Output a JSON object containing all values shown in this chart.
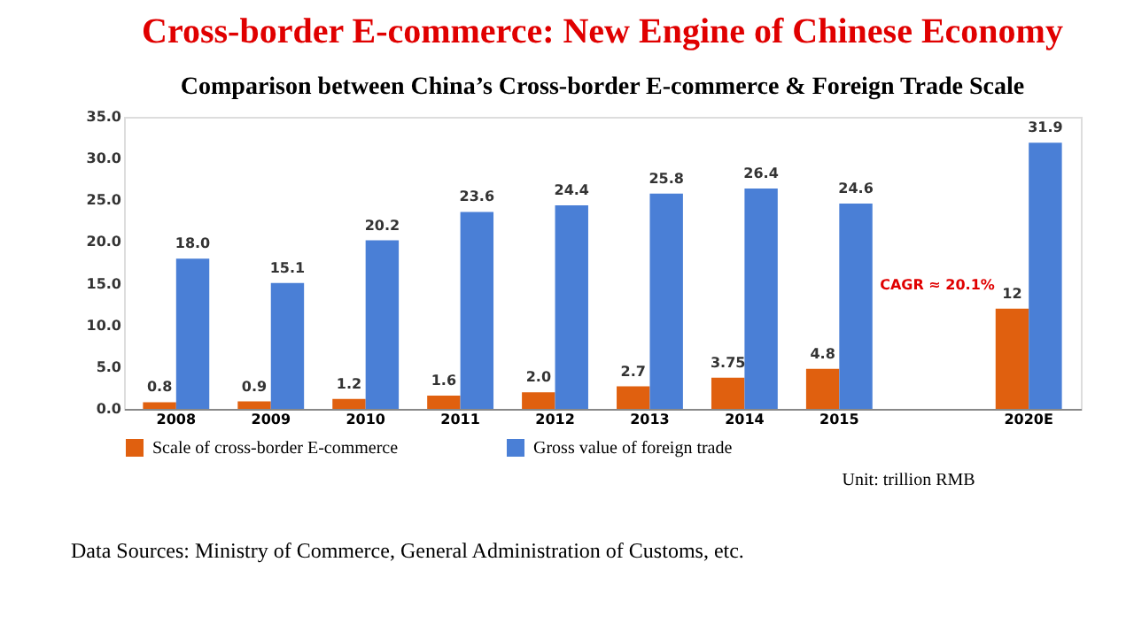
{
  "chart_data": {
    "type": "bar",
    "title": "Cross-border E-commerce: New Engine of Chinese Economy",
    "subtitle": "Comparison between China’s  Cross-border E-commerce & Foreign Trade Scale",
    "categories": [
      "2008",
      "2009",
      "2010",
      "2011",
      "2012",
      "2013",
      "2014",
      "2015",
      null,
      "2020E"
    ],
    "series": [
      {
        "name": "Scale of cross-border E-commerce",
        "color": "#e0600f",
        "values": [
          0.8,
          0.9,
          1.2,
          1.6,
          2.0,
          2.7,
          3.75,
          4.8,
          null,
          12
        ],
        "value_labels": [
          "0.8",
          "0.9",
          "1.2",
          "1.6",
          "2.0",
          "2.7",
          "3.75",
          "4.8",
          null,
          "12"
        ]
      },
      {
        "name": "Gross value of foreign trade",
        "color": "#4a7fd6",
        "values": [
          18.0,
          15.1,
          20.2,
          23.6,
          24.4,
          25.8,
          26.4,
          24.6,
          null,
          31.9
        ],
        "value_labels": [
          "18.0",
          "15.1",
          "20.2",
          "23.6",
          "24.4",
          "25.8",
          "26.4",
          "24.6",
          null,
          "31.9"
        ]
      }
    ],
    "ylim": [
      0,
      35
    ],
    "yticks": [
      {
        "value": 0,
        "label": "0.0"
      },
      {
        "value": 5,
        "label": "5.0"
      },
      {
        "value": 10,
        "label": "10.0"
      },
      {
        "value": 15,
        "label": "15.0"
      },
      {
        "value": 20,
        "label": "20.0"
      },
      {
        "value": 25,
        "label": "25.0"
      },
      {
        "value": 30,
        "label": "30.0"
      },
      {
        "value": 35,
        "label": "35.0"
      }
    ],
    "grid": false,
    "legend": "bottom",
    "annotations": [
      "CAGR ≈ 20.1%",
      "Unit: trillion RMB",
      "Data Sources: Ministry of Commerce, General Administration of Customs, etc."
    ]
  }
}
